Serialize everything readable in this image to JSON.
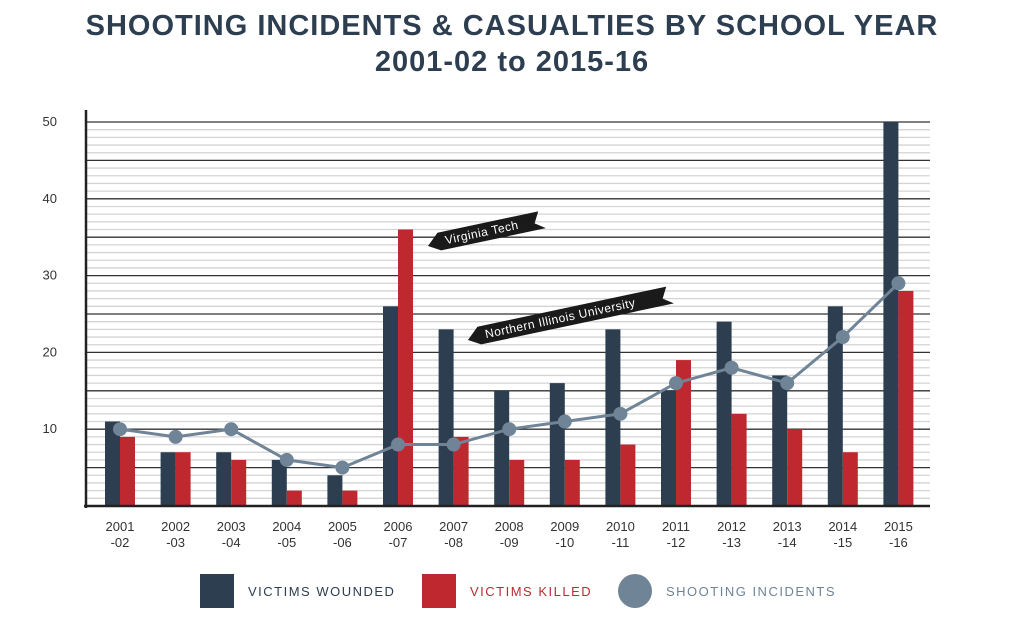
{
  "chart_data": {
    "type": "bar",
    "title": "SHOOTING INCIDENTS & CASUALTIES BY SCHOOL YEAR",
    "subtitle": "2001-02 to 2015-16",
    "xlabel": "",
    "ylabel": "",
    "ylim": [
      0,
      50
    ],
    "yticks": [
      10,
      20,
      30,
      40,
      50
    ],
    "grid": true,
    "legend_position": "bottom",
    "categories": [
      [
        "2001",
        "-02"
      ],
      [
        "2002",
        "-03"
      ],
      [
        "2003",
        "-04"
      ],
      [
        "2004",
        "-05"
      ],
      [
        "2005",
        "-06"
      ],
      [
        "2006",
        "-07"
      ],
      [
        "2007",
        "-08"
      ],
      [
        "2008",
        "-09"
      ],
      [
        "2009",
        "-10"
      ],
      [
        "2010",
        "-11"
      ],
      [
        "2011",
        "-12"
      ],
      [
        "2012",
        "-13"
      ],
      [
        "2013",
        "-14"
      ],
      [
        "2014",
        "-15"
      ],
      [
        "2015",
        "-16"
      ]
    ],
    "series": [
      {
        "name": "VICTIMS WOUNDED",
        "type": "bar",
        "color": "#2d3e50",
        "values": [
          11,
          7,
          7,
          6,
          4,
          26,
          23,
          15,
          16,
          23,
          15,
          24,
          17,
          26,
          50
        ]
      },
      {
        "name": "VICTIMS KILLED",
        "type": "bar",
        "color": "#c0282f",
        "values": [
          9,
          7,
          6,
          2,
          2,
          36,
          9,
          6,
          6,
          8,
          19,
          12,
          10,
          7,
          28
        ]
      },
      {
        "name": "SHOOTING INCIDENTS",
        "type": "line",
        "color": "#6f8496",
        "values": [
          10,
          9,
          10,
          6,
          5,
          8,
          8,
          10,
          11,
          12,
          16,
          18,
          16,
          22,
          29
        ]
      }
    ],
    "annotations": [
      {
        "text": "Virginia Tech",
        "category_index": 5
      },
      {
        "text": "Northern Illinois University",
        "category_index": 6
      }
    ]
  }
}
